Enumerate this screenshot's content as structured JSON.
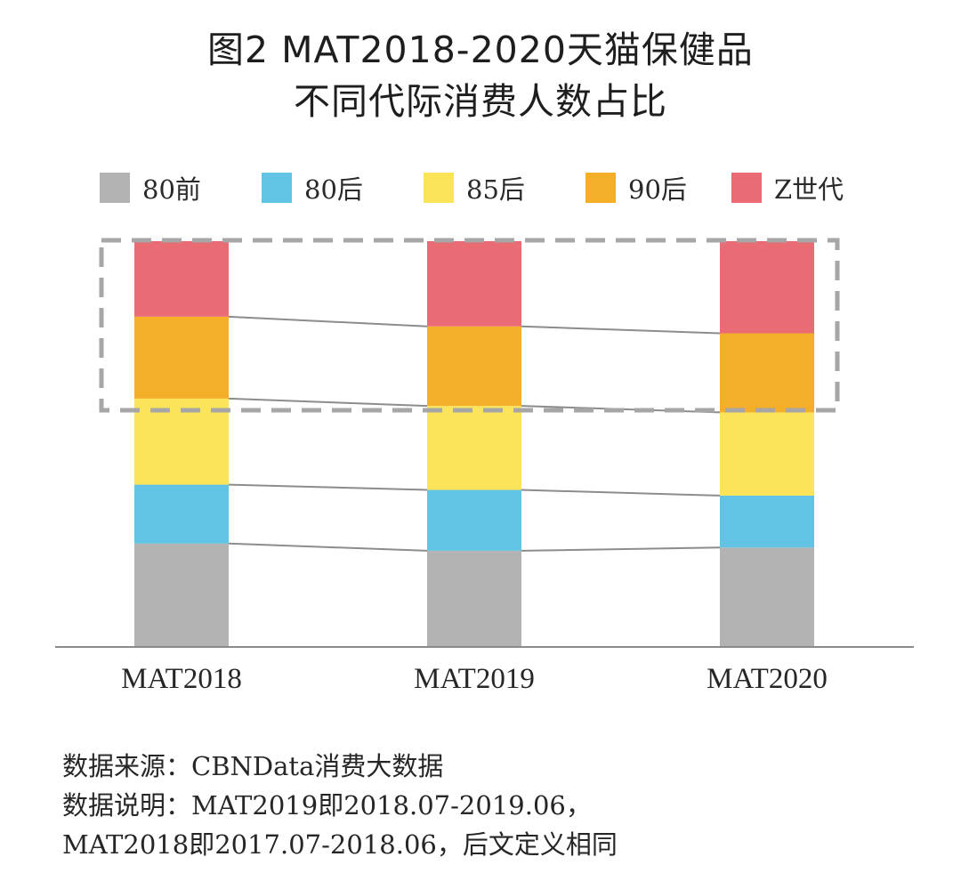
{
  "title": {
    "line1": "图2 MAT2018-2020天猫保健品",
    "line2": "不同代际消费人数占比"
  },
  "legend": [
    {
      "label": "80前",
      "color": "#b3b3b3"
    },
    {
      "label": "80后",
      "color": "#62c4e4"
    },
    {
      "label": "85后",
      "color": "#fbe35a"
    },
    {
      "label": "90后",
      "color": "#f5ae28"
    },
    {
      "label": "Z世代",
      "color": "#e96c74"
    }
  ],
  "chart_data": {
    "type": "bar",
    "stacked": true,
    "categories": [
      "MAT2018",
      "MAT2019",
      "MAT2020"
    ],
    "ylim": [
      0,
      1
    ],
    "series": [
      {
        "name": "80前",
        "color": "#b3b3b3",
        "values": [
          0.255,
          0.237,
          0.245
        ]
      },
      {
        "name": "80后",
        "color": "#62c4e4",
        "values": [
          0.145,
          0.15,
          0.128
        ]
      },
      {
        "name": "85后",
        "color": "#fbe35a",
        "values": [
          0.212,
          0.207,
          0.205
        ]
      },
      {
        "name": "90后",
        "color": "#f5ae28",
        "values": [
          0.202,
          0.196,
          0.195
        ]
      },
      {
        "name": "Z世代",
        "color": "#e96c74",
        "values": [
          0.186,
          0.21,
          0.227
        ]
      }
    ]
  },
  "footnote": {
    "line1": "数据来源：CBNData消费大数据",
    "line2": "数据说明：MAT2019即2018.07-2019.06，",
    "line3": "MAT2018即2017.07-2018.06，后文定义相同"
  }
}
